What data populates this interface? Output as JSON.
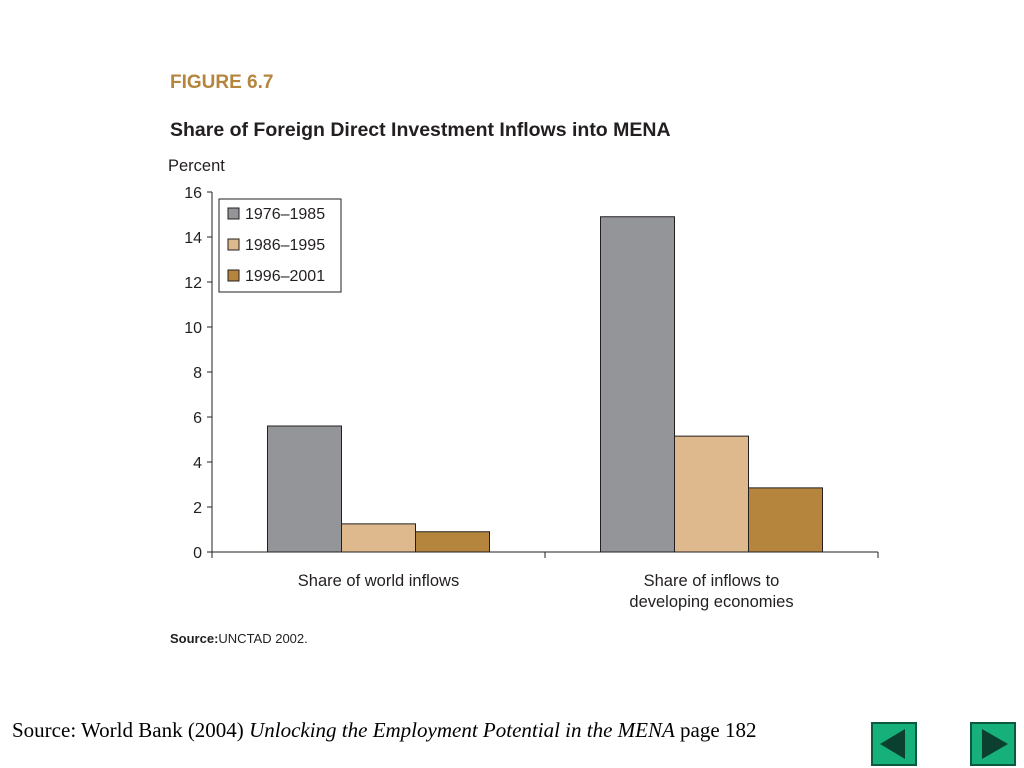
{
  "chart_data": {
    "type": "bar",
    "figure_label": "FIGURE 6.7",
    "title": "Share of Foreign Direct Investment Inflows into MENA",
    "ylabel": "Percent",
    "xlabel": "",
    "ylim": [
      0,
      16
    ],
    "yticks": [
      0,
      2,
      4,
      6,
      8,
      10,
      12,
      14,
      16
    ],
    "categories": [
      "Share of world inflows",
      "Share of inflows to developing economies"
    ],
    "category_lines": [
      [
        "Share of world inflows"
      ],
      [
        "Share of inflows to",
        "developing economies"
      ]
    ],
    "series": [
      {
        "name": "1976–1985",
        "values": [
          5.6,
          14.9
        ],
        "color": "#939598"
      },
      {
        "name": "1986–1995",
        "values": [
          1.25,
          5.15
        ],
        "color": "#dfb98e"
      },
      {
        "name": "1996–2001",
        "values": [
          0.9,
          2.85
        ],
        "color": "#b5853e"
      }
    ],
    "legend_position": "top-left",
    "grid": false,
    "source_label": "Source:",
    "source_text": "UNCTAD 2002."
  },
  "footer": {
    "prefix": "Source: World Bank (2004) ",
    "title": "Unlocking the Employment Potential in the MENA",
    "suffix": " page 182"
  },
  "nav": {
    "prev_icon": "triangle-left-icon",
    "next_icon": "triangle-right-icon",
    "color": "#16b07a"
  }
}
